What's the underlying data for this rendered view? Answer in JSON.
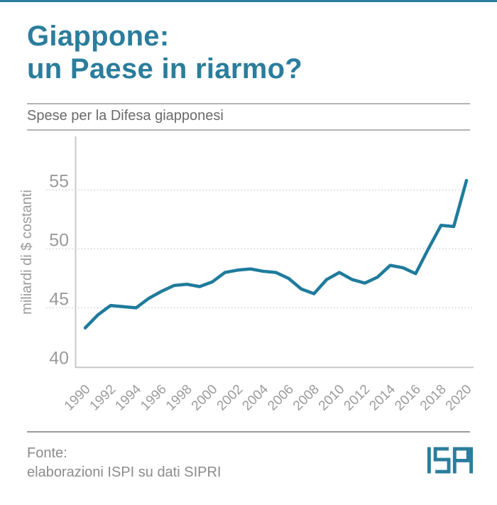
{
  "brand": {
    "teal": "#2b7d9c",
    "logo_text": "ISPI"
  },
  "header": {
    "title_line1": "Giappone:",
    "title_line2": "un Paese in riarmo?",
    "subtitle": "Spese per la Difesa giapponesi"
  },
  "footer": {
    "source_label": "Fonte:",
    "source_text": "elaborazioni ISPI su dati SIPRI"
  },
  "chart_data": {
    "type": "line",
    "title": "Spese per la Difesa giapponesi",
    "ylabel": "miliardi di $ costanti",
    "x": [
      1990,
      1991,
      1992,
      1993,
      1994,
      1995,
      1996,
      1997,
      1998,
      1999,
      2000,
      2001,
      2002,
      2003,
      2004,
      2005,
      2006,
      2007,
      2008,
      2009,
      2010,
      2011,
      2012,
      2013,
      2014,
      2015,
      2016,
      2017,
      2018,
      2019,
      2020
    ],
    "values": [
      43.3,
      44.4,
      45.2,
      45.1,
      45.0,
      45.8,
      46.4,
      46.9,
      47.0,
      46.8,
      47.2,
      48.0,
      48.2,
      48.3,
      48.1,
      48.0,
      47.5,
      46.6,
      46.2,
      47.4,
      48.0,
      47.4,
      47.1,
      47.6,
      48.6,
      48.4,
      47.9,
      50.0,
      52.0,
      51.9,
      55.8
    ],
    "xticks": [
      1990,
      1992,
      1994,
      1996,
      1998,
      2000,
      2002,
      2004,
      2006,
      2008,
      2010,
      2012,
      2014,
      2016,
      2018,
      2020
    ],
    "yticks": [
      40,
      45,
      50,
      55
    ],
    "xlim": [
      1990,
      2020
    ],
    "ylim": [
      40,
      57
    ],
    "line_color": "#1f7b9c",
    "grid": "horizontal-dotted",
    "legend": "none"
  }
}
